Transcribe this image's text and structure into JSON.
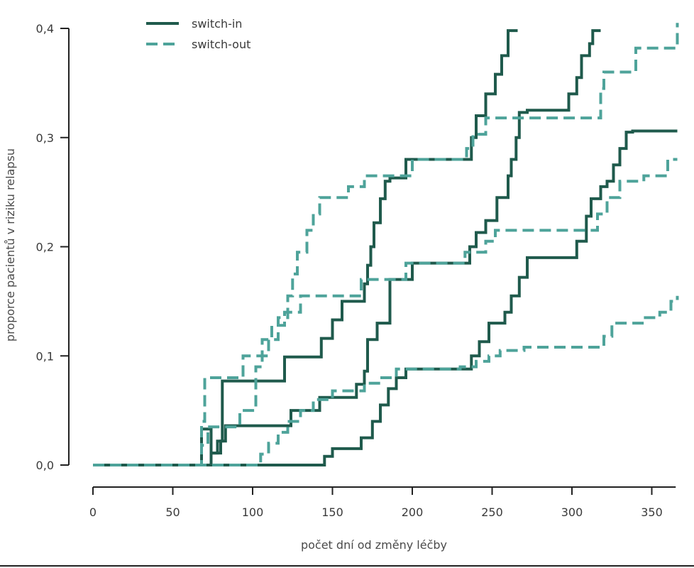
{
  "chart_data": {
    "type": "line",
    "step": true,
    "xlabel": "počet dní od změny léčby",
    "ylabel": "proporce pacientů v riziku relapsu",
    "xlim": [
      0,
      365
    ],
    "ylim": [
      0,
      0.4
    ],
    "xticks": [
      0,
      50,
      100,
      150,
      200,
      250,
      300,
      350
    ],
    "xtick_labels": [
      "0",
      "50",
      "100",
      "150",
      "200",
      "250",
      "300",
      "350"
    ],
    "yticks": [
      0.0,
      0.1,
      0.2,
      0.3,
      0.4
    ],
    "ytick_labels": [
      "0,0",
      "0,1",
      "0,2",
      "0,3",
      "0,4"
    ],
    "grid": false,
    "legend": {
      "position": "top-left",
      "entries": [
        {
          "label": "switch-in",
          "style": "solid",
          "color": "#1f5a4c"
        },
        {
          "label": "switch-out",
          "style": "dashed",
          "color": "#4ea39a"
        }
      ]
    },
    "series": [
      {
        "legend_entry": "switch-in",
        "style": "solid",
        "color": "#1f5a4c",
        "x": [
          0,
          68,
          71,
          74,
          78,
          81,
          120,
          143,
          150,
          156,
          170,
          172,
          174,
          176,
          180,
          183,
          186,
          188,
          192,
          196,
          200,
          230,
          237,
          240,
          246,
          252,
          256,
          260,
          266
        ],
        "y": [
          0,
          0.033,
          0.033,
          0.011,
          0.022,
          0.077,
          0.099,
          0.116,
          0.133,
          0.15,
          0.166,
          0.183,
          0.2,
          0.222,
          0.244,
          0.26,
          0.263,
          0.263,
          0.263,
          0.28,
          0.28,
          0.28,
          0.3,
          0.32,
          0.34,
          0.358,
          0.375,
          0.398,
          0.398
        ]
      },
      {
        "legend_entry": "switch-in",
        "style": "solid",
        "color": "#1f5a4c",
        "x": [
          0,
          74,
          80,
          83,
          118,
          124,
          142,
          165,
          170,
          172,
          178,
          186,
          200,
          230,
          236,
          240,
          246,
          253,
          257,
          260,
          262,
          265,
          267,
          270,
          272,
          298,
          303,
          306,
          308,
          311,
          313,
          315,
          318
        ],
        "y": [
          0,
          0.011,
          0.022,
          0.036,
          0.036,
          0.05,
          0.062,
          0.074,
          0.086,
          0.115,
          0.13,
          0.17,
          0.185,
          0.185,
          0.2,
          0.213,
          0.224,
          0.245,
          0.245,
          0.265,
          0.28,
          0.3,
          0.323,
          0.323,
          0.325,
          0.34,
          0.355,
          0.375,
          0.375,
          0.386,
          0.398,
          0.398,
          0.398
        ]
      },
      {
        "legend_entry": "switch-in",
        "style": "solid",
        "color": "#1f5a4c",
        "x": [
          0,
          145,
          150,
          160,
          168,
          175,
          180,
          185,
          190,
          196,
          230,
          237,
          242,
          248,
          253,
          258,
          262,
          267,
          272,
          279,
          290,
          297,
          303,
          309,
          312,
          318,
          322,
          326,
          330,
          334,
          338,
          366
        ],
        "y": [
          0,
          0.008,
          0.015,
          0.015,
          0.025,
          0.04,
          0.055,
          0.07,
          0.08,
          0.088,
          0.088,
          0.1,
          0.113,
          0.13,
          0.13,
          0.14,
          0.155,
          0.172,
          0.19,
          0.19,
          0.19,
          0.19,
          0.205,
          0.228,
          0.244,
          0.255,
          0.26,
          0.275,
          0.29,
          0.305,
          0.306,
          0.306
        ]
      },
      {
        "legend_entry": "switch-out",
        "style": "dashed",
        "color": "#4ea39a",
        "x": [
          0,
          68,
          70,
          74,
          90,
          94,
          98,
          105,
          110,
          116,
          122,
          125,
          128,
          134,
          138,
          142,
          152,
          160,
          170,
          176,
          184,
          200,
          218,
          234,
          238,
          246,
          252,
          260,
          266,
          274,
          282,
          296,
          300,
          318,
          320,
          332,
          340,
          350,
          360,
          366
        ],
        "y": [
          0,
          0.04,
          0.08,
          0.08,
          0.08,
          0.1,
          0.1,
          0.1,
          0.115,
          0.135,
          0.155,
          0.175,
          0.195,
          0.215,
          0.23,
          0.245,
          0.245,
          0.255,
          0.265,
          0.265,
          0.265,
          0.28,
          0.28,
          0.29,
          0.303,
          0.318,
          0.318,
          0.318,
          0.318,
          0.318,
          0.318,
          0.318,
          0.318,
          0.345,
          0.36,
          0.36,
          0.382,
          0.382,
          0.382,
          0.405
        ]
      },
      {
        "legend_entry": "switch-out",
        "style": "dashed",
        "color": "#4ea39a",
        "x": [
          0,
          68,
          72,
          80,
          92,
          98,
          102,
          106,
          112,
          120,
          130,
          140,
          150,
          160,
          168,
          178,
          186,
          196,
          210,
          225,
          233,
          240,
          246,
          252,
          262,
          275,
          286,
          300,
          310,
          316,
          322,
          330,
          338,
          345,
          352,
          360,
          366
        ],
        "y": [
          0,
          0.018,
          0.035,
          0.035,
          0.05,
          0.05,
          0.09,
          0.115,
          0.128,
          0.14,
          0.155,
          0.155,
          0.155,
          0.155,
          0.17,
          0.17,
          0.17,
          0.185,
          0.185,
          0.185,
          0.195,
          0.195,
          0.205,
          0.215,
          0.215,
          0.215,
          0.215,
          0.215,
          0.215,
          0.23,
          0.245,
          0.26,
          0.26,
          0.265,
          0.265,
          0.28,
          0.28
        ]
      },
      {
        "legend_entry": "switch-out",
        "style": "dashed",
        "color": "#4ea39a",
        "x": [
          0,
          105,
          110,
          116,
          122,
          130,
          138,
          150,
          160,
          170,
          180,
          190,
          200,
          215,
          230,
          240,
          248,
          255,
          270,
          290,
          310,
          320,
          325,
          335,
          345,
          355,
          362,
          366
        ],
        "y": [
          0,
          0.01,
          0.02,
          0.03,
          0.04,
          0.05,
          0.06,
          0.068,
          0.068,
          0.075,
          0.08,
          0.088,
          0.088,
          0.088,
          0.09,
          0.095,
          0.1,
          0.105,
          0.108,
          0.108,
          0.108,
          0.118,
          0.13,
          0.13,
          0.135,
          0.14,
          0.15,
          0.155
        ]
      }
    ]
  }
}
